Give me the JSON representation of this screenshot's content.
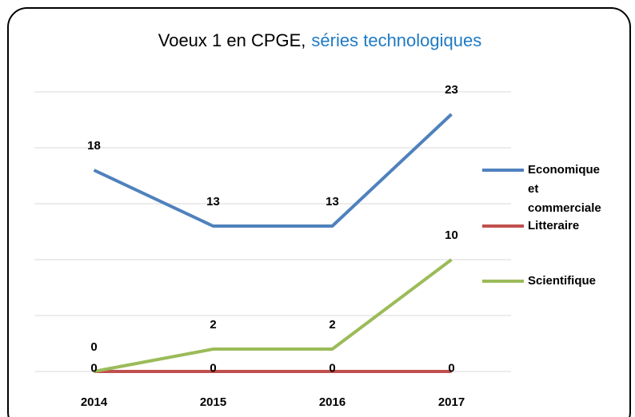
{
  "chart_data": {
    "type": "line",
    "title": [
      "Voeux 1 en CPGE,",
      "séries technologiques"
    ],
    "categories": [
      "2014",
      "2015",
      "2016",
      "2017"
    ],
    "series": [
      {
        "name": "Economique et commerciale",
        "color": "#4f81bd",
        "values": [
          18,
          13,
          13,
          23
        ]
      },
      {
        "name": "Litteraire",
        "color": "#c0504d",
        "values": [
          0,
          0,
          0,
          0
        ]
      },
      {
        "name": "Scientifique",
        "color": "#9bbb59",
        "values": [
          0,
          2,
          2,
          10
        ]
      }
    ],
    "ylim": [
      0,
      25
    ],
    "yticks": [
      0,
      5,
      10,
      15,
      20,
      25
    ],
    "grid": true,
    "legend": "right"
  }
}
